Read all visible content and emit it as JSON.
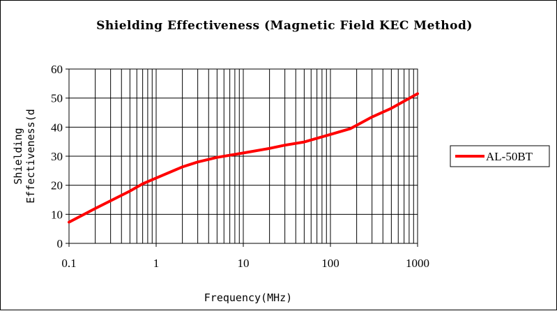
{
  "chart_data": {
    "type": "line",
    "title": "Shielding Effectiveness (Magnetic Field KEC Method)",
    "xlabel": "Frequency(MHz)",
    "ylabel_line1": "Shielding",
    "ylabel_line2": "Effectiveness(d",
    "x_scale": "log",
    "xlim": [
      0.1,
      1000
    ],
    "ylim": [
      0,
      60
    ],
    "x_ticks": [
      {
        "value": 0.1,
        "label": "0.1"
      },
      {
        "value": 1,
        "label": "1"
      },
      {
        "value": 10,
        "label": "10"
      },
      {
        "value": 100,
        "label": "100"
      },
      {
        "value": 1000,
        "label": "1000"
      }
    ],
    "y_ticks": [
      {
        "value": 0,
        "label": "0"
      },
      {
        "value": 10,
        "label": "10"
      },
      {
        "value": 20,
        "label": "20"
      },
      {
        "value": 30,
        "label": "30"
      },
      {
        "value": 40,
        "label": "40"
      },
      {
        "value": 50,
        "label": "50"
      },
      {
        "value": 60,
        "label": "60"
      }
    ],
    "grid": true,
    "legend_position": "right",
    "series": [
      {
        "name": "AL-50BT",
        "color": "#ff0000",
        "x": [
          0.1,
          0.2,
          0.5,
          0.7,
          1,
          2,
          3,
          5,
          10,
          20,
          30,
          50,
          100,
          170,
          300,
          500,
          1000
        ],
        "y": [
          7.3,
          12,
          18,
          20.5,
          22.5,
          26.3,
          28,
          29.6,
          31.1,
          32.7,
          33.8,
          34.9,
          37.5,
          39.5,
          43.5,
          46.5,
          51.5
        ]
      }
    ]
  }
}
